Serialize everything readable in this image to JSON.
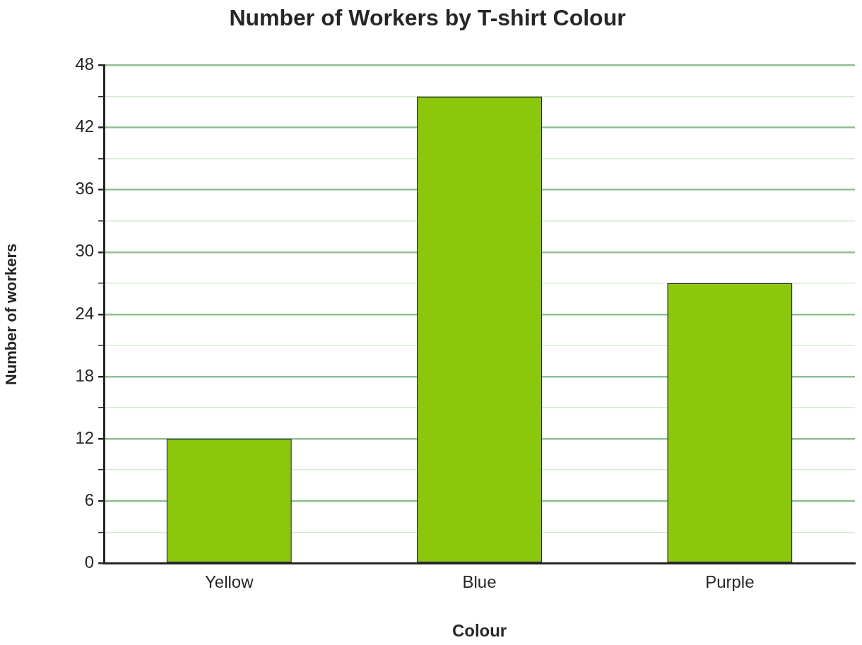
{
  "chart_data": {
    "type": "bar",
    "title": "Number of Workers by T-shirt Colour",
    "xlabel": "Colour",
    "ylabel": "Number of workers",
    "categories": [
      "Yellow",
      "Blue",
      "Purple"
    ],
    "values": [
      12,
      45,
      27
    ],
    "color": "#8bc70a",
    "ylim": [
      0,
      48
    ],
    "yticks": [
      0,
      {
        "value": 3,
        "label": null
      },
      6,
      {
        "value": 9,
        "label": null
      },
      12,
      {
        "value": 15,
        "label": null
      },
      18,
      {
        "value": 21,
        "label": null
      },
      24,
      {
        "value": 27,
        "label": null
      },
      30,
      {
        "value": 33,
        "label": null
      },
      36,
      {
        "value": 39,
        "label": null
      },
      42,
      {
        "value": 45,
        "label": null
      },
      48
    ],
    "grid": "y",
    "legend": false
  }
}
